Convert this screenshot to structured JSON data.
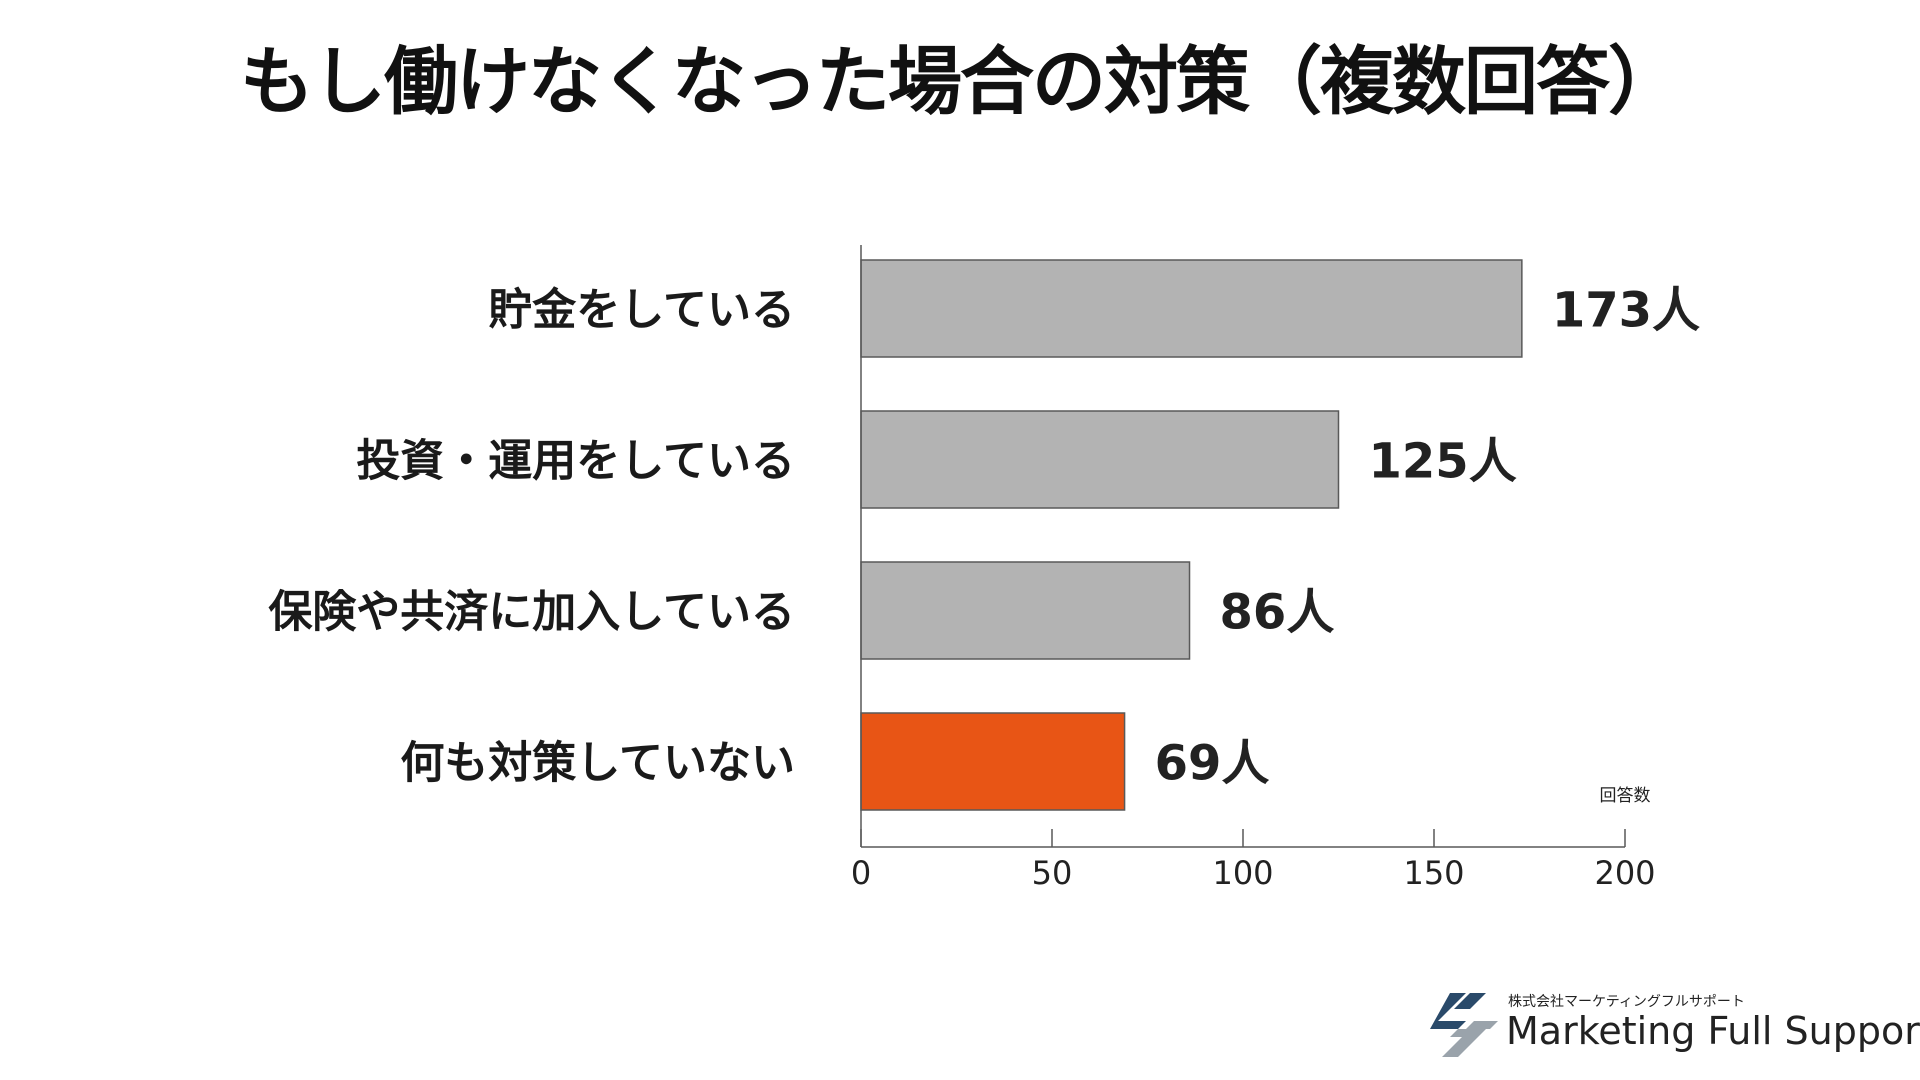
{
  "title": "もし働けなくなった場合の対策（複数回答）",
  "chart_data": {
    "type": "bar",
    "orientation": "horizontal",
    "title": "もし働けなくなった場合の対策（複数回答）",
    "categories": [
      "貯金をしている",
      "投資・運用をしている",
      "保険や共済に加入している",
      "何も対策していない"
    ],
    "values": [
      173,
      125,
      86,
      69
    ],
    "value_labels": [
      "173人",
      "125人",
      "86人",
      "69人"
    ],
    "xlabel": "回答数",
    "ylabel": "",
    "xlim": [
      0,
      200
    ],
    "xticks": [
      0,
      50,
      100,
      150,
      200
    ],
    "grid": false,
    "legend": "none",
    "colors": {
      "default_bar": "#b3b3b3",
      "highlight_bar": "#e85515",
      "bar_stroke": "#595959",
      "axis": "#595959"
    },
    "highlight_index": 3
  },
  "logo": {
    "company": "株式会社マーケティングフルサポート",
    "brand": "Marketing Full Support",
    "icon": "mfs-logo-icon",
    "colors": {
      "dark": "#2a4a6a",
      "light": "#9aa3ab"
    }
  }
}
